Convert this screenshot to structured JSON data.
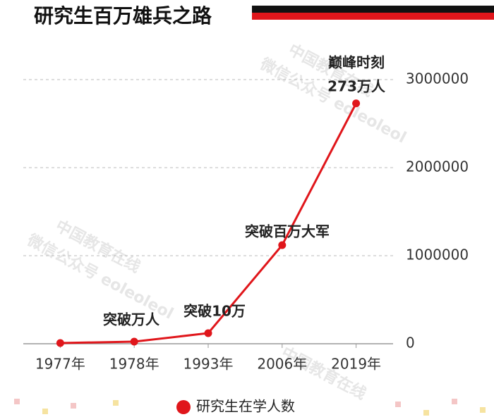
{
  "chart_data": {
    "type": "line",
    "title": "研究生百万雄兵之路",
    "categories": [
      "1977年",
      "1978年",
      "1993年",
      "2006年",
      "2019年"
    ],
    "series": [
      {
        "name": "研究生在学人数",
        "color": "#e0161b",
        "values": [
          8000,
          24000,
          120000,
          1120000,
          2730000
        ]
      }
    ],
    "ylim": [
      0,
      3200000
    ],
    "yticks": [
      0,
      1000000,
      2000000,
      3000000
    ],
    "grid": true,
    "annotations": [
      "突破万人",
      "突破10万",
      "突破百万大军",
      "巅峰时刻",
      "273万人"
    ],
    "watermarks": [
      "中国教育在线",
      "微信公众号 eoleoleol"
    ]
  }
}
